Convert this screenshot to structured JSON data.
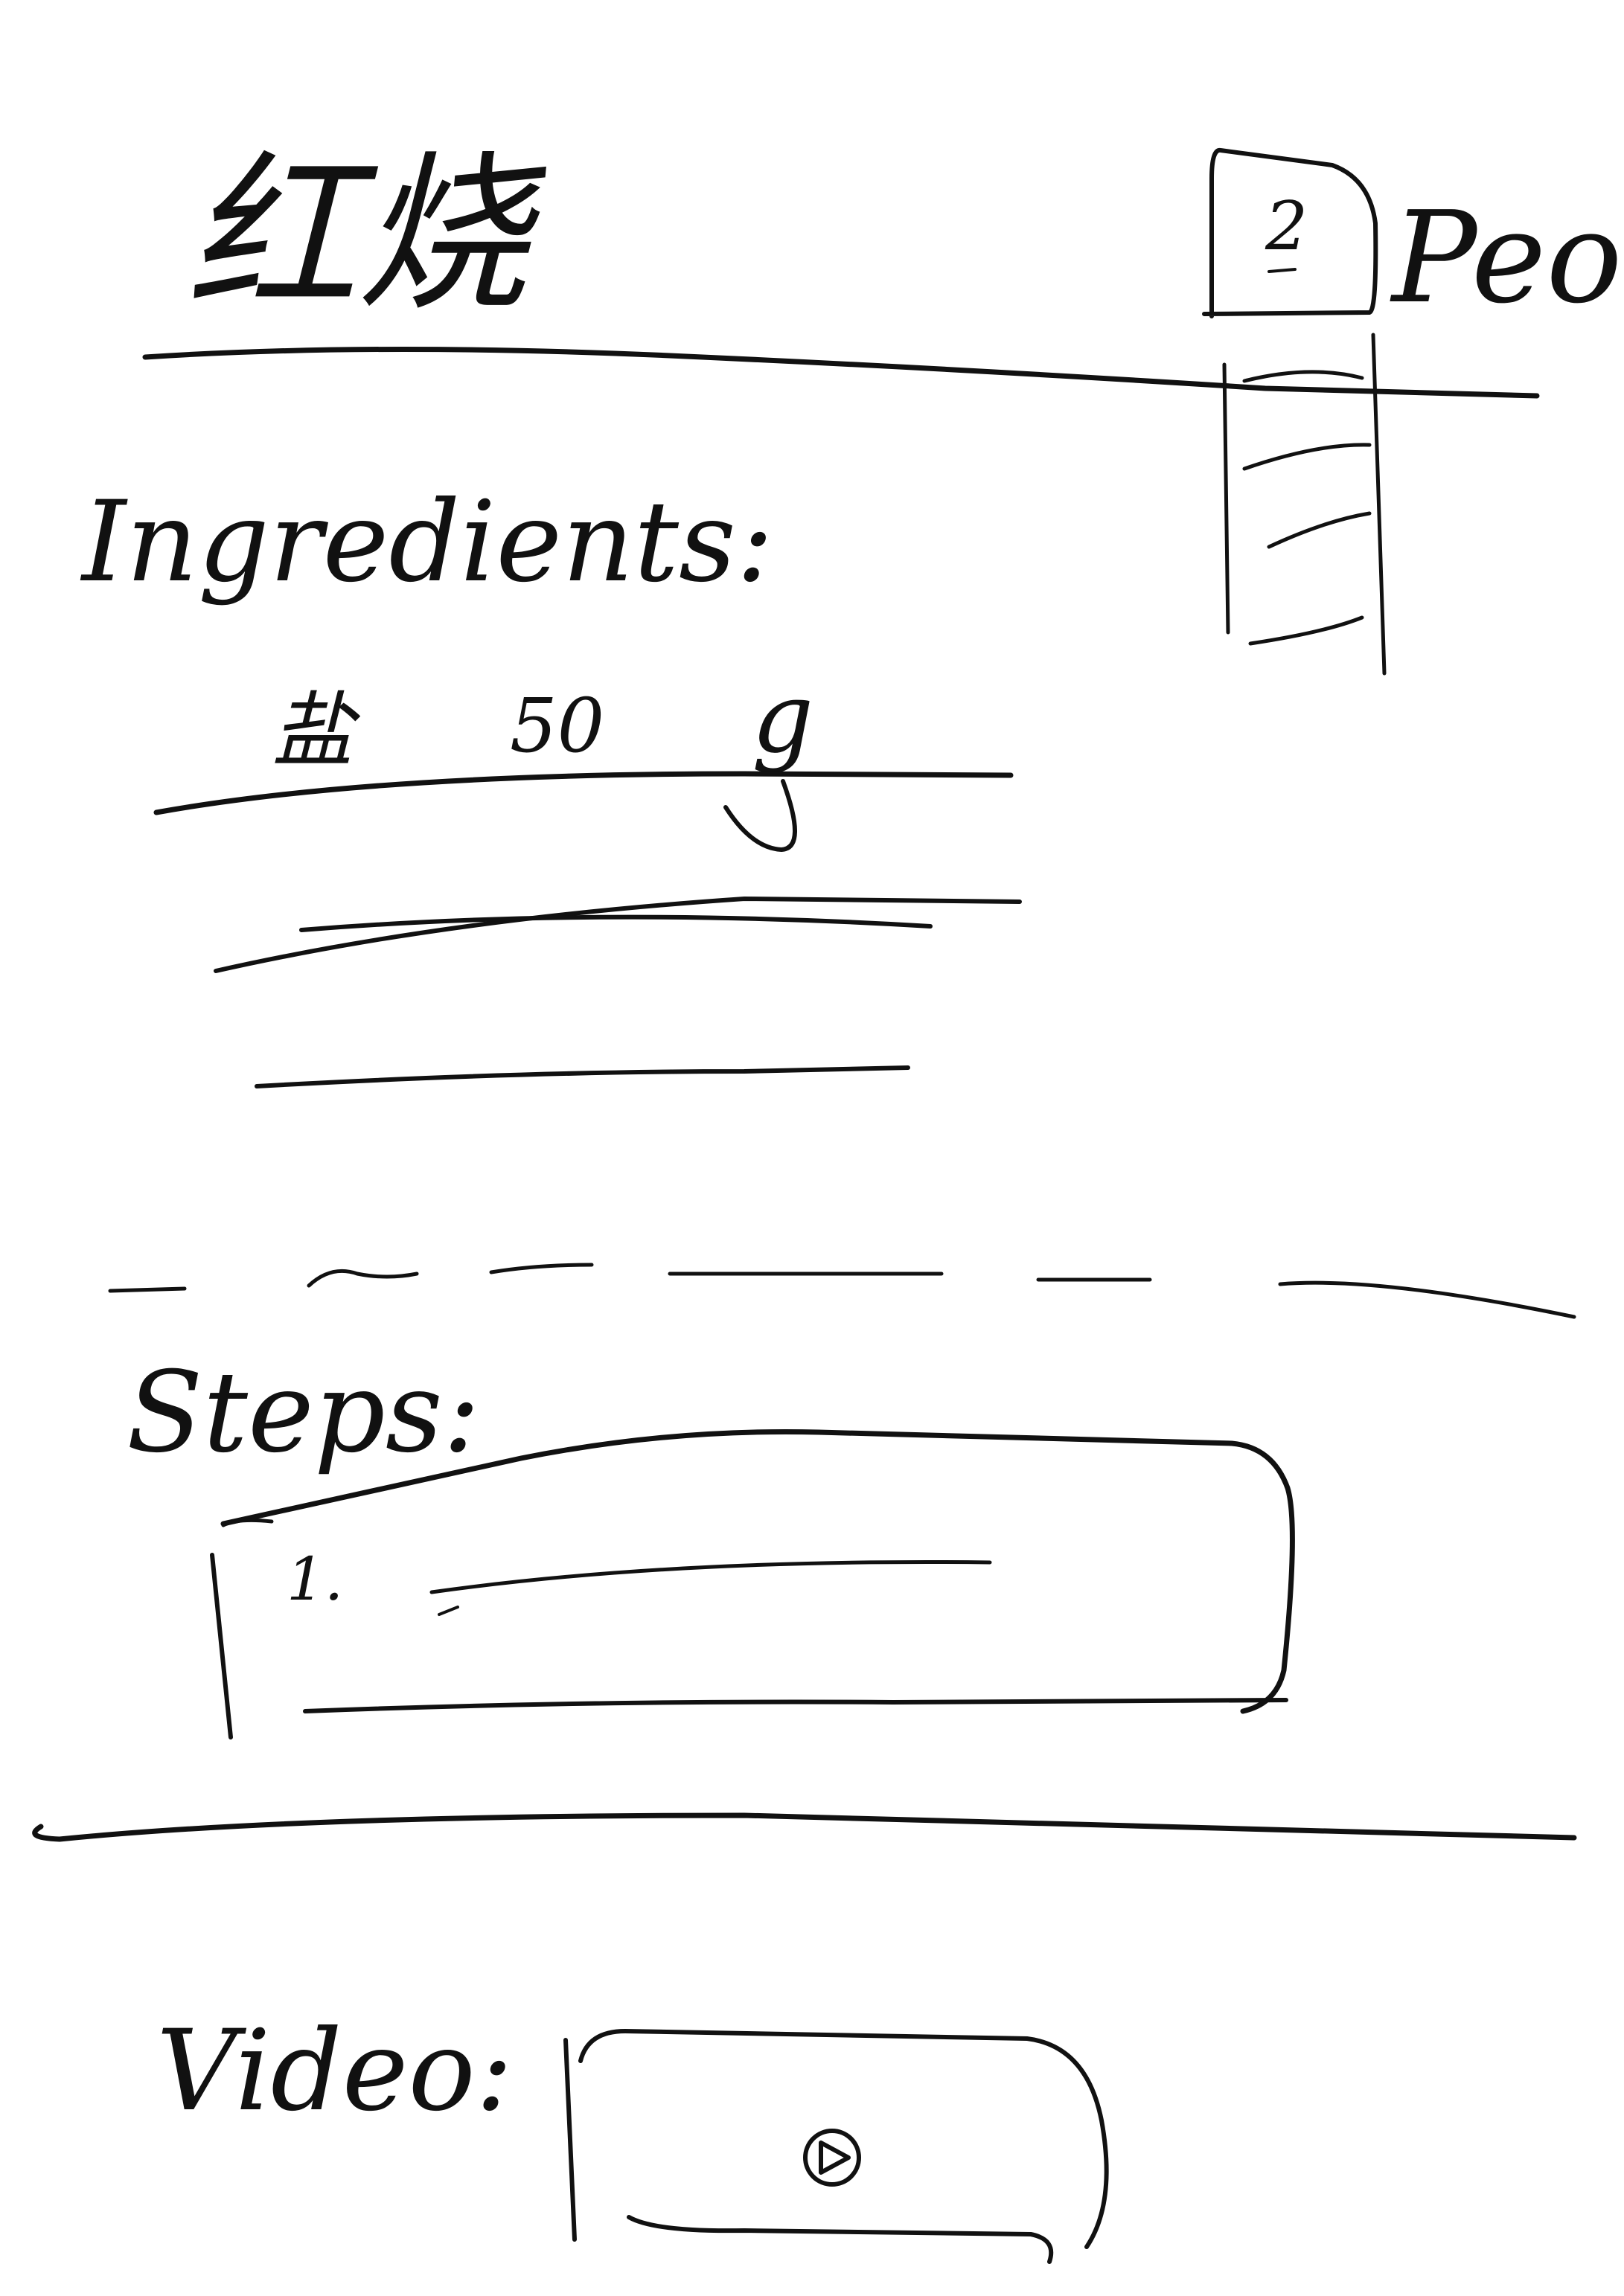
{
  "header": {
    "recipe_name": "红烧",
    "people_count": "2",
    "people_label": "People"
  },
  "ingredients": {
    "heading": "Ingredients:",
    "items": [
      {
        "name": "盐",
        "amount": "50",
        "unit": "g"
      }
    ]
  },
  "steps": {
    "heading": "Steps:",
    "items": [
      {
        "number": "1."
      }
    ]
  },
  "video": {
    "heading": "Video:"
  },
  "icons": {
    "play": "play-icon",
    "people_dropdown": "chevron-down-icon"
  }
}
